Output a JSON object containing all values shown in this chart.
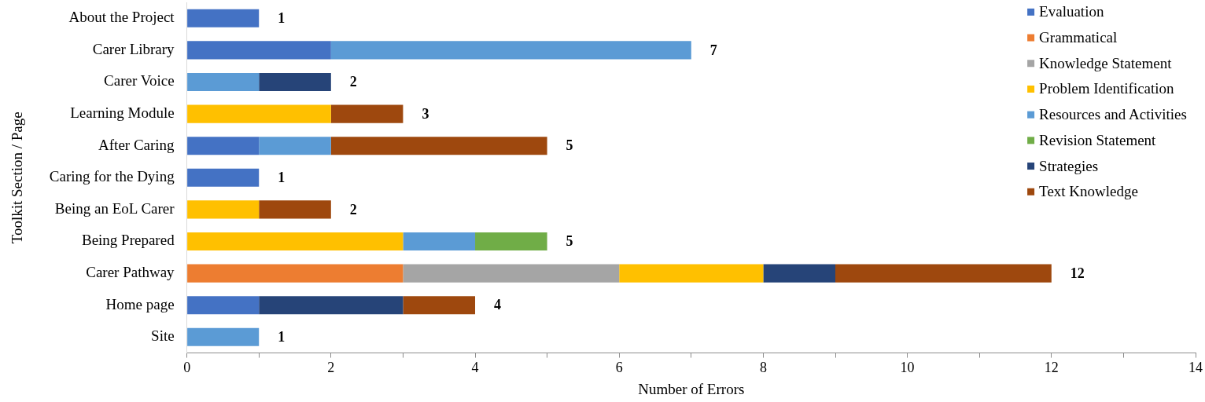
{
  "chart_data": {
    "type": "bar",
    "orientation": "horizontal",
    "stacked": true,
    "xlabel": "Number of Errors",
    "ylabel": "Toolkit Section / Page",
    "categories": [
      "About the Project",
      "Carer Library",
      "Carer Voice",
      "Learning Module",
      "After Caring",
      "Caring for the Dying",
      "Being an EoL Carer",
      "Being Prepared",
      "Carer Pathway",
      "Home page",
      "Site"
    ],
    "series": [
      {
        "name": "Evaluation",
        "color": "#4472c4",
        "values": [
          1,
          2,
          null,
          null,
          1,
          1,
          null,
          null,
          null,
          1,
          null
        ]
      },
      {
        "name": "Grammatical",
        "color": "#ed7d31",
        "values": [
          null,
          null,
          null,
          null,
          null,
          null,
          null,
          null,
          3,
          null,
          null
        ]
      },
      {
        "name": "Knowledge Statement",
        "color": "#a5a5a5",
        "values": [
          null,
          null,
          null,
          null,
          null,
          null,
          null,
          null,
          3,
          null,
          null
        ]
      },
      {
        "name": "Problem Identification",
        "color": "#ffc000",
        "values": [
          null,
          null,
          null,
          2,
          null,
          null,
          1,
          3,
          2,
          null,
          null
        ]
      },
      {
        "name": "Resources and Activities",
        "color": "#5b9bd5",
        "values": [
          null,
          5,
          1,
          null,
          1,
          null,
          null,
          1,
          null,
          null,
          1
        ]
      },
      {
        "name": "Revision Statement",
        "color": "#70ad47",
        "values": [
          null,
          null,
          null,
          null,
          null,
          null,
          null,
          1,
          null,
          null,
          null
        ]
      },
      {
        "name": "Strategies",
        "color": "#264478",
        "values": [
          null,
          null,
          1,
          null,
          null,
          null,
          null,
          null,
          1,
          2,
          null
        ]
      },
      {
        "name": "Text Knowledge",
        "color": "#9e480e",
        "values": [
          null,
          null,
          null,
          1,
          3,
          null,
          1,
          null,
          3,
          1,
          null
        ]
      }
    ],
    "totals": [
      "1",
      "7",
      "2",
      "3",
      "5",
      "1",
      "2",
      "5",
      "12",
      "4",
      "1"
    ],
    "xlim": [
      0,
      14
    ],
    "xticks": [
      0,
      {
        "value": 1,
        "label": null
      },
      2,
      {
        "value": 3,
        "label": null
      },
      4,
      {
        "value": 5,
        "label": null
      },
      6,
      {
        "value": 7,
        "label": null
      },
      8,
      {
        "value": 9,
        "label": null
      },
      10,
      {
        "value": 11,
        "label": null
      },
      12,
      {
        "value": 13,
        "label": null
      },
      14
    ],
    "legend": "top right"
  }
}
